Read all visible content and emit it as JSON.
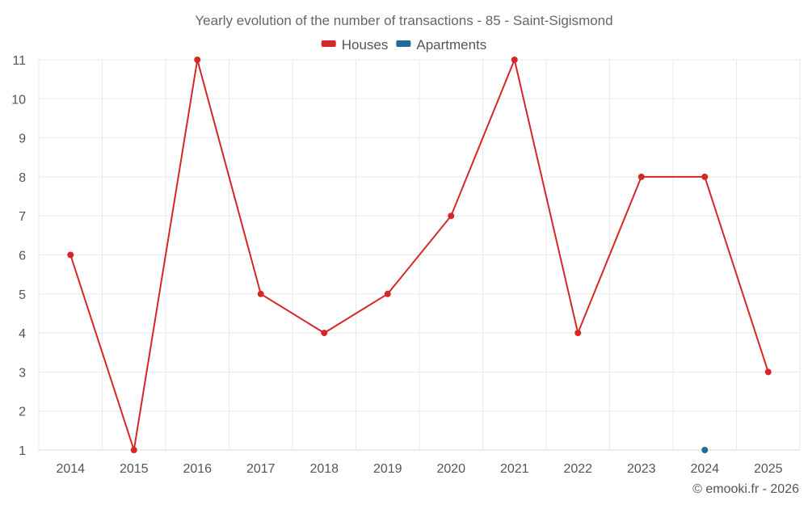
{
  "chart_data": {
    "type": "line",
    "title": "Yearly evolution of the number of transactions - 85 - Saint-Sigismond",
    "xlabel": "",
    "ylabel": "",
    "categories": [
      "2014",
      "2015",
      "2016",
      "2017",
      "2018",
      "2019",
      "2020",
      "2021",
      "2022",
      "2023",
      "2024",
      "2025"
    ],
    "ylim": [
      1,
      11
    ],
    "yticks": [
      1,
      2,
      3,
      4,
      5,
      6,
      7,
      8,
      9,
      10,
      11
    ],
    "grid": true,
    "legend_position": "top-center",
    "series": [
      {
        "name": "Houses",
        "color": "#d62728",
        "values": [
          6,
          1,
          11,
          5,
          4,
          5,
          7,
          11,
          4,
          8,
          8,
          3
        ]
      },
      {
        "name": "Apartments",
        "color": "#1f6b9c",
        "values": [
          null,
          null,
          null,
          null,
          null,
          null,
          null,
          null,
          null,
          null,
          1,
          null
        ]
      }
    ]
  },
  "footer": {
    "credit": "© emooki.fr - 2026"
  }
}
